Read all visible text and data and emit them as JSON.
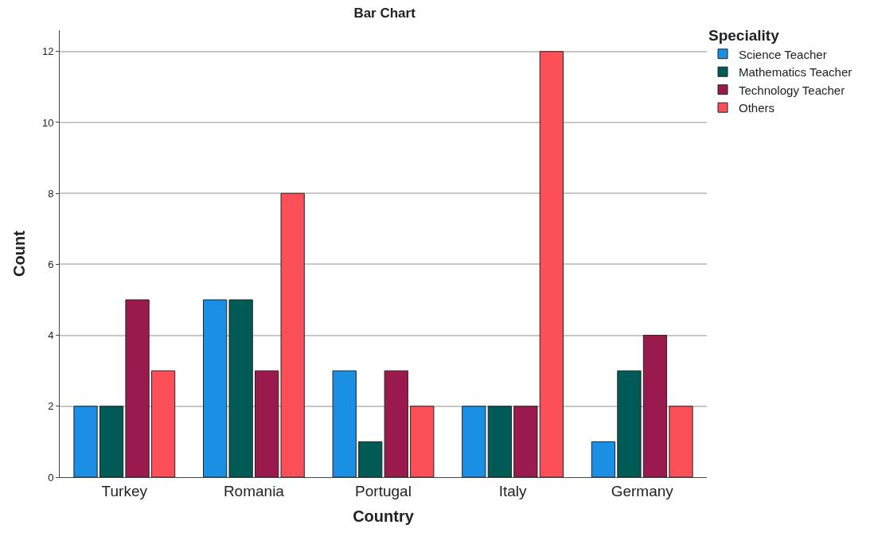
{
  "chart_data": {
    "type": "bar",
    "title": "Bar Chart",
    "xlabel": "Country",
    "ylabel": "Count",
    "legend_title": "Speciality",
    "categories": [
      "Turkey",
      "Romania",
      "Portugal",
      "Italy",
      "Germany"
    ],
    "series": [
      {
        "name": "Science Teacher",
        "color": "#1a8fe3",
        "values": [
          2,
          5,
          3,
          2,
          1
        ]
      },
      {
        "name": "Mathematics Teacher",
        "color": "#005a56",
        "values": [
          2,
          5,
          1,
          2,
          3
        ]
      },
      {
        "name": "Technology Teacher",
        "color": "#9b1a4e",
        "values": [
          5,
          3,
          3,
          2,
          4
        ]
      },
      {
        "name": "Others",
        "color": "#fd4f57",
        "values": [
          3,
          8,
          2,
          12,
          2
        ]
      }
    ],
    "ylim": [
      0,
      12.6
    ],
    "yticks": [
      0,
      2,
      4,
      6,
      8,
      10,
      12
    ],
    "grid": "y",
    "legend": "top right"
  }
}
